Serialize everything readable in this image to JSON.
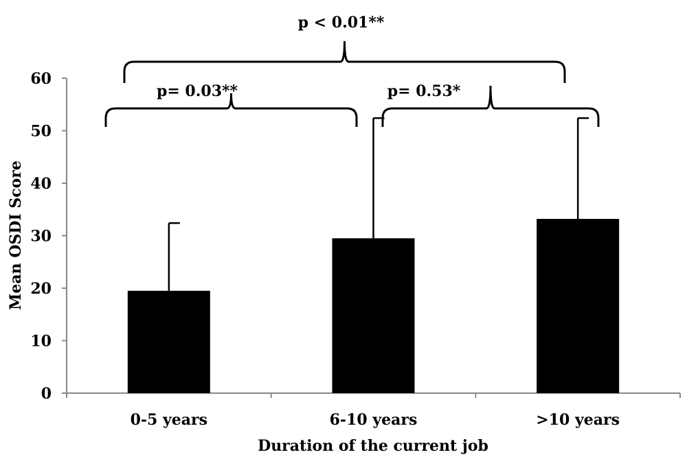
{
  "chart_data": {
    "type": "bar",
    "categories": [
      "0-5 years",
      "6-10 years",
      ">10 years"
    ],
    "series": [
      {
        "values": [
          19.5,
          29.5,
          33.2
        ],
        "error_upper": [
          32.4,
          52.4,
          52.4
        ]
      }
    ],
    "xlabel": "Duration of the current job",
    "ylabel": "Mean OSDI Score",
    "ylim": [
      0,
      60
    ],
    "yticks": [
      0,
      10,
      20,
      30,
      40,
      50,
      60
    ],
    "grid": false,
    "bar_color": "#000000",
    "annotations": [
      {
        "text": "p < 0.01**",
        "from": "0-5 years",
        "to": ">10 years"
      },
      {
        "text": "p= 0.03**",
        "from": "0-5 years",
        "to": "6-10 years"
      },
      {
        "text": "p= 0.53*",
        "from": "6-10 years",
        "to": ">10 years"
      }
    ]
  }
}
